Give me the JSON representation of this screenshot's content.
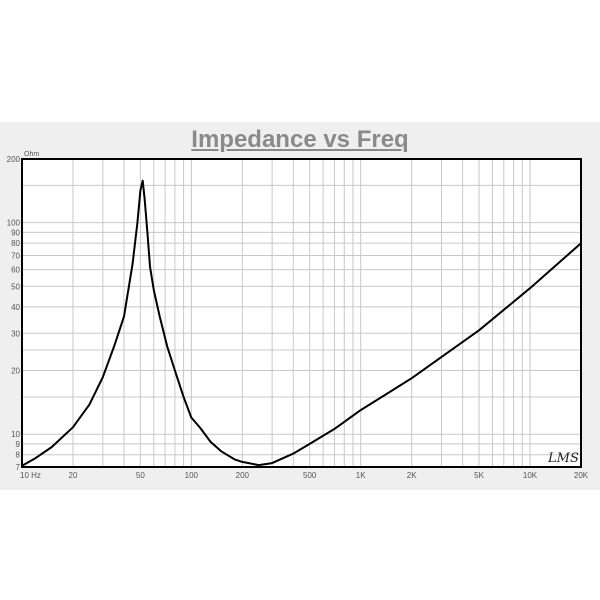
{
  "chart_data": {
    "type": "line",
    "title": "Impedance vs Freq",
    "ylabel": "Ohm",
    "xunit": "Hz",
    "xscale": "log",
    "yscale": "log",
    "xlim": [
      10,
      20000
    ],
    "ylim": [
      7,
      200
    ],
    "grid": true,
    "x_tick_labels": [
      "10 Hz",
      "20",
      "50",
      "100",
      "200",
      "500",
      "1K",
      "2K",
      "5K",
      "10K",
      "20K"
    ],
    "x_tick_values": [
      10,
      20,
      50,
      100,
      200,
      500,
      1000,
      2000,
      5000,
      10000,
      20000
    ],
    "y_tick_labels": [
      "200",
      "100",
      "90",
      "80",
      "70",
      "60",
      "50",
      "40",
      "30",
      "20",
      "10",
      "9",
      "8",
      "7"
    ],
    "y_tick_values": [
      200,
      100,
      90,
      80,
      70,
      60,
      50,
      40,
      30,
      20,
      10,
      9,
      8,
      7
    ],
    "watermark": "LMS",
    "series": [
      {
        "x": [
          10,
          12,
          15,
          20,
          25,
          30,
          35,
          40,
          45,
          48,
          50,
          51.6,
          53,
          55,
          57,
          60,
          65,
          72,
          80,
          90,
          100,
          113,
          130,
          150,
          180,
          200,
          250,
          300,
          400,
          500,
          700,
          1000,
          2000,
          5000,
          10000,
          20000
        ],
        "y": [
          7.1,
          7.7,
          8.7,
          10.8,
          13.8,
          18.6,
          26,
          36,
          64,
          100,
          142,
          158,
          130,
          90,
          62,
          48,
          36,
          26,
          20,
          15,
          12,
          10.7,
          9.2,
          8.3,
          7.6,
          7.4,
          7.15,
          7.3,
          8.1,
          9,
          10.6,
          13,
          18.4,
          31,
          49,
          80
        ]
      }
    ],
    "colors": {
      "line": "#000000",
      "grid": "#c8c8c8",
      "panel": "#efefef",
      "title": "#8a8a8a"
    }
  }
}
